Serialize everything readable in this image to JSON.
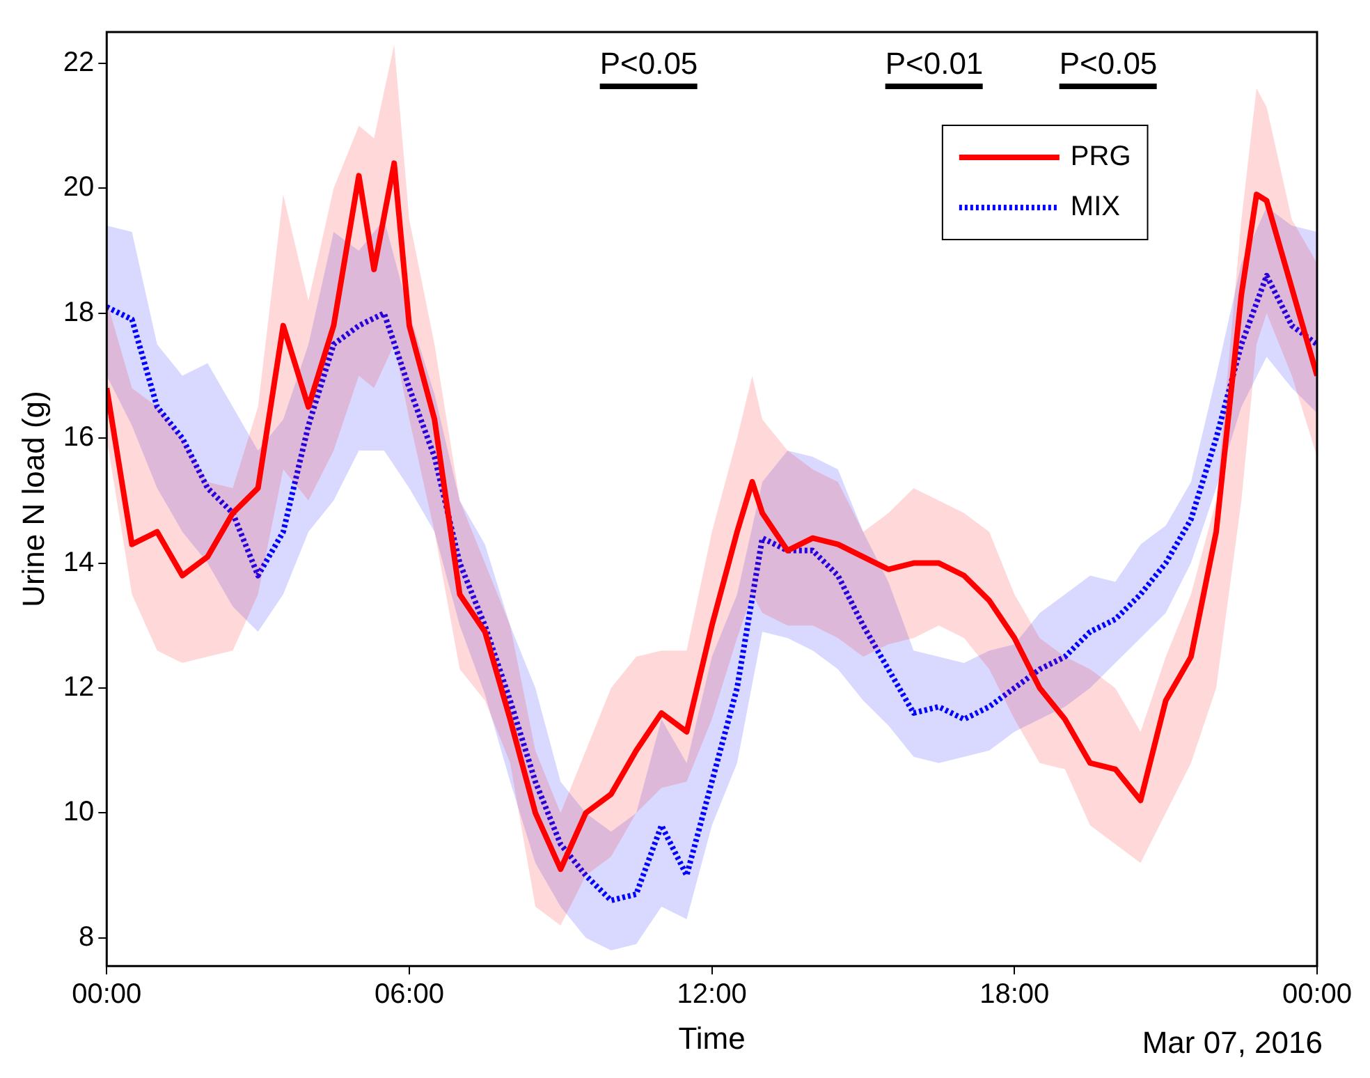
{
  "chart_data": {
    "type": "line",
    "xlabel": "Time",
    "ylabel": "Urine N load (g)",
    "xlim": [
      0,
      24
    ],
    "xticks": [
      {
        "value": 0,
        "label": "00:00"
      },
      {
        "value": 6,
        "label": "06:00"
      },
      {
        "value": 12,
        "label": "12:00"
      },
      {
        "value": 18,
        "label": "18:00"
      },
      {
        "value": 24,
        "label": "00:00"
      }
    ],
    "ylim": [
      7.55,
      22.5
    ],
    "yticks": [
      8,
      10,
      12,
      14,
      16,
      18,
      20,
      22
    ],
    "legend": "top right",
    "series": [
      {
        "name": "PRG",
        "color": "#ff0000",
        "line_style": "solid",
        "x": [
          0,
          0.5,
          1,
          1.5,
          2,
          2.5,
          3,
          3.5,
          4,
          4.5,
          5,
          5.3,
          5.7,
          6,
          6.5,
          7,
          7.5,
          8,
          8.5,
          9,
          9.5,
          10,
          10.5,
          11,
          11.5,
          12,
          12.5,
          12.8,
          13,
          13.5,
          14,
          14.5,
          15,
          15.5,
          16,
          16.5,
          17,
          17.5,
          18,
          18.5,
          19,
          19.5,
          20,
          20.5,
          21,
          21.5,
          22,
          22.5,
          22.8,
          23,
          23.5,
          24
        ],
        "values": [
          16.8,
          14.3,
          14.5,
          13.8,
          14.1,
          14.8,
          15.2,
          17.8,
          16.5,
          17.8,
          20.2,
          18.7,
          20.4,
          17.8,
          16.3,
          13.5,
          12.9,
          11.5,
          10.0,
          9.1,
          10.0,
          10.3,
          11.0,
          11.6,
          11.3,
          13.0,
          14.5,
          15.3,
          14.8,
          14.2,
          14.4,
          14.3,
          14.1,
          13.9,
          14.0,
          14.0,
          13.8,
          13.4,
          12.8,
          12.0,
          11.5,
          10.8,
          10.7,
          10.2,
          11.8,
          12.5,
          14.5,
          18.3,
          19.9,
          19.8,
          18.4,
          17.0
        ],
        "upper": [
          18.2,
          16.8,
          16.5,
          16.0,
          15.3,
          15.2,
          16.5,
          19.9,
          18.2,
          20.0,
          21.0,
          20.8,
          22.3,
          19.5,
          17.5,
          15.0,
          14.0,
          13.0,
          11.0,
          10.0,
          11.0,
          12.0,
          12.5,
          12.6,
          12.6,
          14.5,
          16.0,
          17.0,
          16.3,
          15.8,
          15.5,
          15.3,
          14.5,
          14.8,
          15.2,
          15.0,
          14.8,
          14.5,
          13.5,
          12.8,
          12.5,
          12.3,
          12.0,
          11.3,
          12.5,
          13.5,
          15.0,
          19.5,
          21.6,
          21.3,
          19.5,
          18.8
        ],
        "lower": [
          16.0,
          13.5,
          12.6,
          12.4,
          12.5,
          12.6,
          13.5,
          15.5,
          15.0,
          15.8,
          17.0,
          16.8,
          17.5,
          16.3,
          14.5,
          12.3,
          11.8,
          10.8,
          8.5,
          8.2,
          9.0,
          9.3,
          10.0,
          10.4,
          10.5,
          11.5,
          12.8,
          13.5,
          13.2,
          13.0,
          13.0,
          12.8,
          12.5,
          12.7,
          12.8,
          13.0,
          12.8,
          12.3,
          11.5,
          10.8,
          10.7,
          9.8,
          9.5,
          9.2,
          10.0,
          10.8,
          12.0,
          15.0,
          17.5,
          18.0,
          17.0,
          15.7
        ]
      },
      {
        "name": "MIX",
        "color": "#0000ff",
        "line_style": "dotted",
        "x": [
          0,
          0.5,
          1,
          1.5,
          2,
          2.5,
          3,
          3.5,
          4,
          4.5,
          5,
          5.5,
          6,
          6.5,
          7,
          7.5,
          8,
          8.5,
          9,
          9.5,
          10,
          10.5,
          11,
          11.5,
          12,
          12.5,
          13,
          13.5,
          14,
          14.5,
          15,
          15.5,
          16,
          16.5,
          17,
          17.5,
          18,
          18.5,
          19,
          19.5,
          20,
          20.5,
          21,
          21.5,
          22,
          22.5,
          23,
          23.5,
          24
        ],
        "values": [
          18.1,
          17.9,
          16.5,
          16.0,
          15.2,
          14.8,
          13.8,
          14.5,
          16.2,
          17.5,
          17.8,
          18.0,
          16.8,
          15.7,
          14.0,
          13.0,
          11.8,
          10.5,
          9.5,
          9.0,
          8.6,
          8.7,
          9.8,
          9.0,
          10.5,
          12.0,
          14.4,
          14.2,
          14.2,
          13.8,
          13.0,
          12.3,
          11.6,
          11.7,
          11.5,
          11.7,
          12.0,
          12.3,
          12.5,
          12.9,
          13.1,
          13.5,
          14.0,
          14.7,
          16.0,
          17.5,
          18.6,
          17.8,
          17.5
        ],
        "upper": [
          19.4,
          19.3,
          17.5,
          17.0,
          17.2,
          16.5,
          15.8,
          16.3,
          17.5,
          19.3,
          19.0,
          19.5,
          18.0,
          16.7,
          15.0,
          14.3,
          13.0,
          12.0,
          10.5,
          10.0,
          9.7,
          10.0,
          11.5,
          10.8,
          12.5,
          13.5,
          15.3,
          15.8,
          15.7,
          15.5,
          14.5,
          13.7,
          12.6,
          12.5,
          12.4,
          12.6,
          12.7,
          13.2,
          13.5,
          13.8,
          13.7,
          14.3,
          14.6,
          15.3,
          17.0,
          18.8,
          19.7,
          19.4,
          19.3
        ],
        "lower": [
          17.0,
          16.2,
          15.2,
          14.5,
          14.0,
          13.3,
          12.9,
          13.5,
          14.5,
          15.0,
          15.8,
          15.8,
          15.2,
          14.5,
          13.0,
          11.9,
          10.5,
          9.2,
          8.5,
          8.0,
          7.8,
          7.9,
          8.5,
          8.3,
          9.8,
          10.8,
          12.9,
          12.8,
          12.6,
          12.3,
          11.8,
          11.4,
          10.9,
          10.8,
          10.9,
          11.0,
          11.3,
          11.5,
          11.7,
          12.0,
          12.4,
          12.8,
          13.2,
          14.0,
          15.2,
          16.5,
          17.3,
          16.8,
          16.4
        ]
      }
    ],
    "annotations": [
      "P<0.05",
      "P<0.01",
      "P<0.05",
      "Mar 07, 2016"
    ]
  }
}
